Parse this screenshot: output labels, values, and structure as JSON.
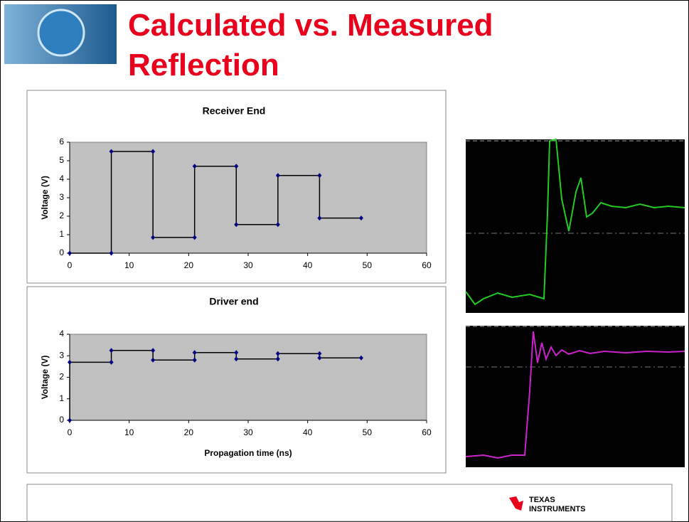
{
  "slide": {
    "title": "Calculated vs. Measured Reflection"
  },
  "footer": {
    "logo_line1": "Texas",
    "logo_line2": "Instruments"
  },
  "chart_data": [
    {
      "type": "line",
      "title": "Receiver End",
      "ylabel": "Voltage (V)",
      "x": [
        0,
        7,
        7,
        14,
        14,
        21,
        21,
        28,
        28,
        35,
        35,
        42,
        42,
        49
      ],
      "values": [
        0,
        0,
        5.5,
        5.5,
        0.85,
        0.85,
        4.7,
        4.7,
        1.55,
        1.55,
        4.2,
        4.2,
        1.9,
        1.9
      ],
      "color": "#000080",
      "xlim": [
        0,
        60
      ],
      "xticks": [
        0,
        10,
        20,
        30,
        40,
        50,
        60
      ],
      "ylim": [
        0,
        6
      ],
      "yticks": [
        0,
        1,
        2,
        3,
        4,
        5,
        6
      ]
    },
    {
      "type": "line",
      "title": "Driver end",
      "ylabel": "Voltage (V)",
      "xlabel": "Propagation time (ns)",
      "x": [
        0,
        0,
        7,
        7,
        14,
        14,
        21,
        21,
        28,
        28,
        35,
        35,
        42,
        42,
        49
      ],
      "values": [
        0,
        2.7,
        2.7,
        3.25,
        3.25,
        2.8,
        2.8,
        3.15,
        3.15,
        2.85,
        2.85,
        3.1,
        3.1,
        2.9,
        2.9
      ],
      "color": "#000080",
      "xlim": [
        0,
        60
      ],
      "xticks": [
        0,
        10,
        20,
        30,
        40,
        50,
        60
      ],
      "ylim": [
        0,
        4
      ],
      "yticks": [
        0,
        1,
        2,
        3,
        4
      ]
    }
  ]
}
